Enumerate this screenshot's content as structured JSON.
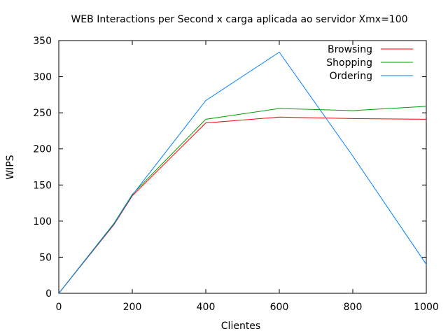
{
  "chart_data": {
    "type": "line",
    "title": "WEB Interactions per Second x carga aplicada ao servidor Xmx=100",
    "xlabel": "Clientes",
    "ylabel": "WIPS",
    "xlim": [
      0,
      1000
    ],
    "ylim": [
      0,
      350
    ],
    "x_ticks": [
      0,
      200,
      400,
      600,
      800,
      1000
    ],
    "y_ticks": [
      0,
      50,
      100,
      150,
      200,
      250,
      300,
      350
    ],
    "grid": false,
    "legend_position": "top-right",
    "series": [
      {
        "name": "Browsing",
        "color": "#ff0000",
        "x": [
          0,
          150,
          200,
          400,
          600,
          800,
          1000
        ],
        "y": [
          0,
          95,
          135,
          236,
          244,
          242,
          241
        ]
      },
      {
        "name": "Shopping",
        "color": "#00a000",
        "x": [
          0,
          150,
          200,
          400,
          600,
          800,
          1000
        ],
        "y": [
          0,
          97,
          137,
          241,
          256,
          253,
          259
        ]
      },
      {
        "name": "Ordering",
        "color": "#0080ff",
        "x": [
          0,
          150,
          200,
          400,
          600,
          800,
          1000
        ],
        "y": [
          0,
          96,
          136,
          267,
          334,
          190,
          40
        ]
      }
    ]
  }
}
